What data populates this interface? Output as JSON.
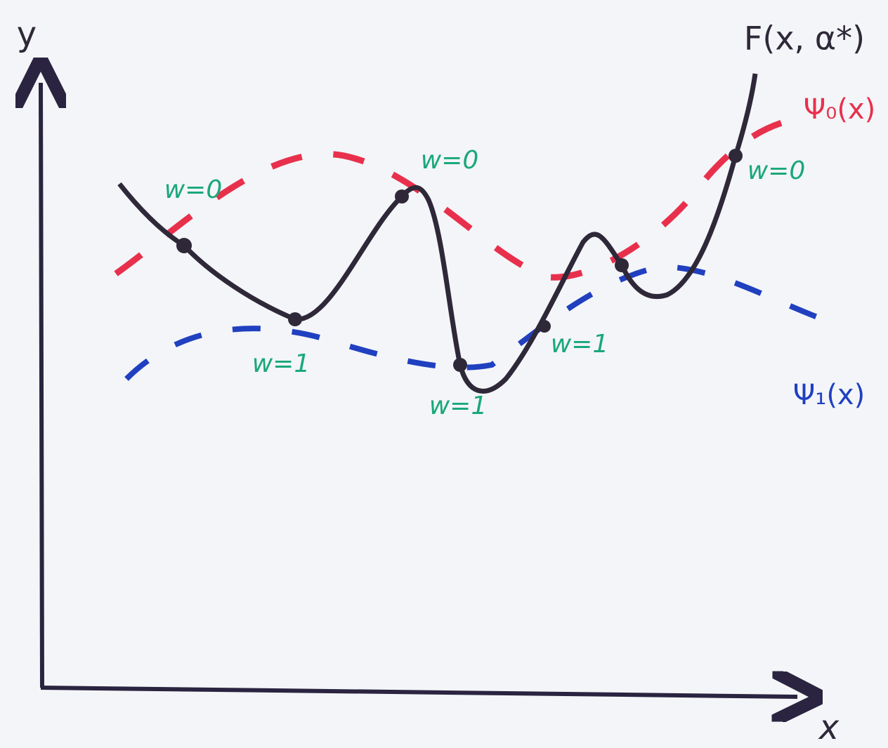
{
  "axes": {
    "y_label": "y",
    "x_label": "x"
  },
  "curves": {
    "f_label": "F(x, α*)",
    "psi0_label": "Ψ₀(x)",
    "psi1_label": "Ψ₁(x)"
  },
  "points": [
    {
      "label": "w=0"
    },
    {
      "label": "w=1"
    },
    {
      "label": "w=0"
    },
    {
      "label": "w=1"
    },
    {
      "label": "w=1"
    },
    {
      "label": "w=0"
    }
  ]
}
